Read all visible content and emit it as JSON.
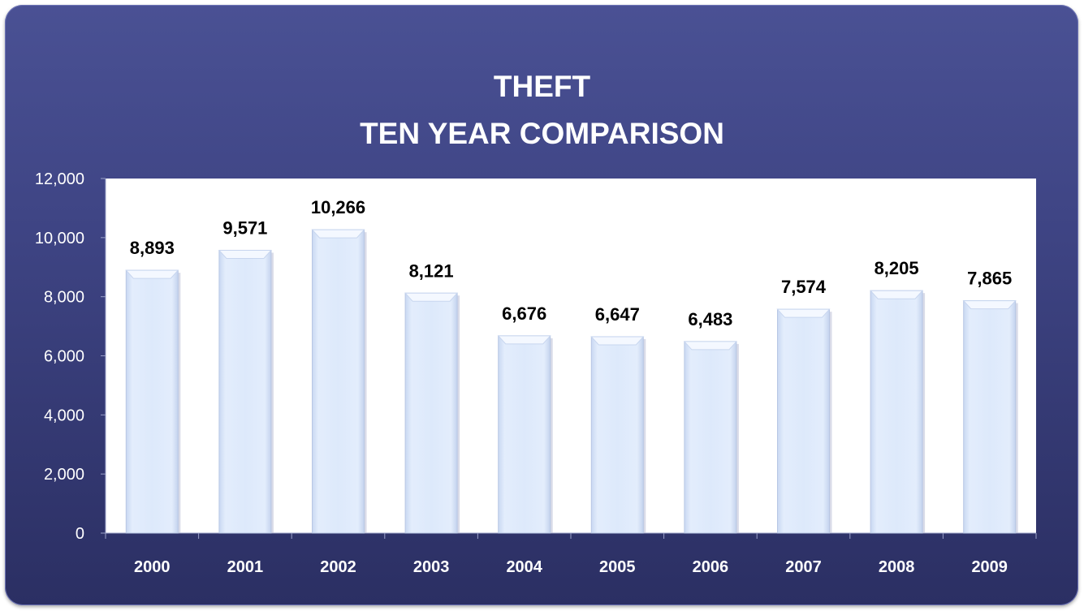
{
  "chart_data": {
    "type": "bar",
    "title_line1": "THEFT",
    "title_line2": "TEN YEAR COMPARISON",
    "categories": [
      "2000",
      "2001",
      "2002",
      "2003",
      "2004",
      "2005",
      "2006",
      "2007",
      "2008",
      "2009"
    ],
    "values": [
      8893,
      9571,
      10266,
      8121,
      6676,
      6647,
      6483,
      7574,
      8205,
      7865
    ],
    "value_labels": [
      "8,893",
      "9,571",
      "10,266",
      "8,121",
      "6,676",
      "6,647",
      "6,483",
      "7,574",
      "8,205",
      "7,865"
    ],
    "y_ticks": [
      "0",
      "2,000",
      "4,000",
      "6,000",
      "8,000",
      "10,000",
      "12,000"
    ],
    "ylim": [
      0,
      12000
    ],
    "grid": false,
    "legend": "none",
    "colors": {
      "frame": "#3f4585",
      "plot_area": "#ffffff",
      "bar_fill": "#dce8fb",
      "bar_top": "#eef4ff"
    }
  }
}
